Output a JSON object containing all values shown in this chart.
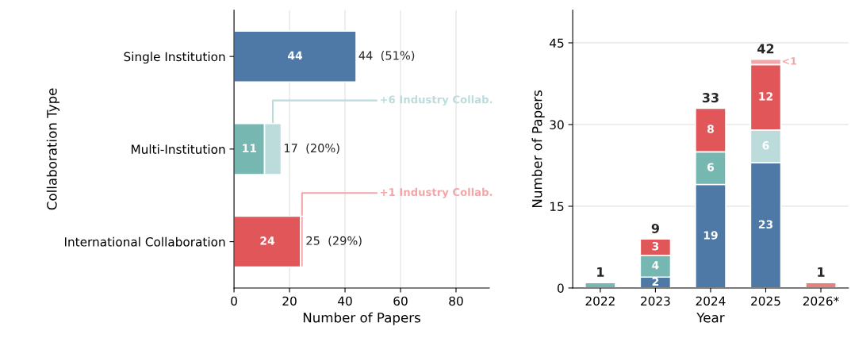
{
  "chart_data": [
    {
      "type": "bar",
      "orientation": "horizontal",
      "stacked": true,
      "xlabel": "Number of Papers",
      "ylabel": "Collaboration Type",
      "categories": [
        "Single Institution",
        "Multi-Institution",
        "International Collaboration"
      ],
      "series": [
        {
          "colors": [
            "#4e79a7",
            "#76b7b2",
            "#e15759"
          ],
          "values": [
            44,
            11,
            24
          ],
          "value_labels": [
            "44",
            "11",
            "24"
          ]
        },
        {
          "colors": [
            "#bcdcdc",
            "#bcdcdc",
            "#f1a7a7"
          ],
          "values": [
            null,
            6,
            1
          ]
        }
      ],
      "totals": [
        "44  (51%)",
        "17  (20%)",
        "25  (29%)"
      ],
      "annotations": [
        "+6 Industry Collab.",
        {
          "text": "+1 Industry Collab.",
          "x": 24.5,
          "y": "International Collaboration"
        }
      ],
      "xlim": [
        0,
        92
      ],
      "xticks": [
        0,
        20,
        40,
        60,
        80
      ],
      "grid": "x",
      "legend": false
    },
    {
      "type": "bar",
      "stacked": true,
      "xlabel": "Year",
      "ylabel": "Number of Papers",
      "categories": [
        "2022",
        "2023",
        "2024",
        "2025",
        "2026*"
      ],
      "series": [
        {
          "color": "#4e79a7",
          "values": [
            null,
            2,
            19,
            23,
            null
          ],
          "value_labels": [
            null,
            "2",
            "19",
            "23",
            null
          ]
        },
        {
          "color": "#76b7b2",
          "values": [
            1,
            4,
            6,
            null,
            null
          ],
          "value_labels": [
            null,
            "4",
            "6",
            null,
            null
          ]
        },
        {
          "color": "#bcdcdc",
          "values": [
            null,
            null,
            null,
            6,
            null
          ],
          "value_labels": [
            null,
            null,
            null,
            "6",
            null
          ]
        },
        {
          "colors": [
            "#e15759",
            "#e15759",
            "#e15759",
            "#e15759",
            "#e8807f"
          ],
          "values": [
            null,
            3,
            8,
            12,
            1
          ],
          "value_labels": [
            null,
            "3",
            "8",
            "12",
            null
          ]
        },
        {
          "color": "#f1a7a7",
          "values": [
            null,
            null,
            null,
            1,
            null
          ],
          "value_labels": [
            null,
            null,
            null,
            "<1",
            null
          ]
        }
      ],
      "totals": [
        "1",
        "9",
        "33",
        "42",
        "1"
      ],
      "ylim": [
        0,
        51
      ],
      "yticks": [
        0,
        15,
        30,
        45
      ],
      "grid": "y",
      "legend": false
    }
  ]
}
